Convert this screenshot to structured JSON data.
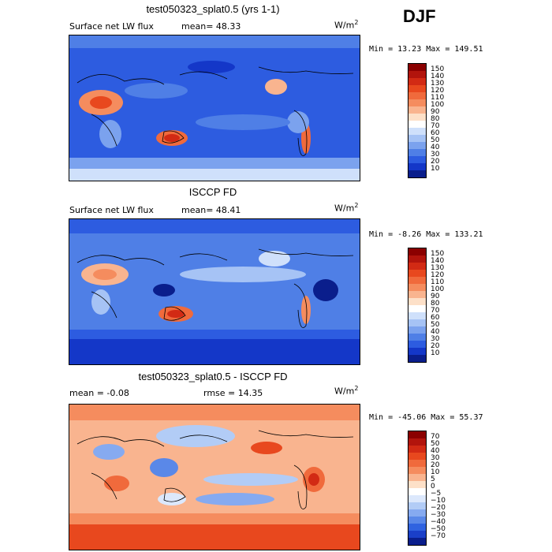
{
  "season": "DJF",
  "unit": "W/m",
  "unit_sup": "2",
  "panels": [
    {
      "title": "test050323_splat0.5 (yrs 1-1)",
      "subtitle_left": "Surface net LW flux",
      "stat_left": "",
      "subtitle_mean": "mean=  48.33",
      "minmax": "Min =  13.23 Max = 149.51",
      "levels": [
        "150",
        "140",
        "130",
        "120",
        "110",
        "100",
        "90",
        "80",
        "70",
        "60",
        "50",
        "40",
        "30",
        "20",
        "10"
      ]
    },
    {
      "title": "ISCCP FD",
      "subtitle_left": "Surface net LW flux",
      "stat_left": "",
      "subtitle_mean": "mean=  48.41",
      "minmax": "Min =  -8.26 Max = 133.21",
      "levels": [
        "150",
        "140",
        "130",
        "120",
        "110",
        "100",
        "90",
        "80",
        "70",
        "60",
        "50",
        "40",
        "30",
        "20",
        "10"
      ]
    },
    {
      "title": "test050323_splat0.5 - ISCCP FD",
      "subtitle_left": "mean =  -0.08",
      "stat_left": "rmse =  14.35",
      "subtitle_mean": "",
      "minmax": "Min = -45.06 Max =  55.37",
      "levels": [
        "70",
        "50",
        "40",
        "30",
        "20",
        "10",
        "5",
        "0",
        "−5",
        "−10",
        "−20",
        "−30",
        "−40",
        "−50",
        "−70"
      ]
    }
  ],
  "colors": {
    "abs_scale": [
      "#8b0000",
      "#b2140c",
      "#d22a14",
      "#e8481e",
      "#f06a3c",
      "#f58c5e",
      "#f9b48f",
      "#fde0c8",
      "#ffffff",
      "#cfe0fb",
      "#a6c3f5",
      "#7ba2ee",
      "#4f7fe6",
      "#2d5ce0",
      "#1437c8",
      "#0a1e8c"
    ],
    "diff_scale": [
      "#8b0000",
      "#b2140c",
      "#d22a14",
      "#e8481e",
      "#f06a3c",
      "#f58c5e",
      "#f9b48f",
      "#fde0c8",
      "#ffffff",
      "#dce8fc",
      "#b2ccf6",
      "#86aaf0",
      "#5a88e8",
      "#3063e0",
      "#1a3fc8",
      "#0a1e8c"
    ]
  }
}
